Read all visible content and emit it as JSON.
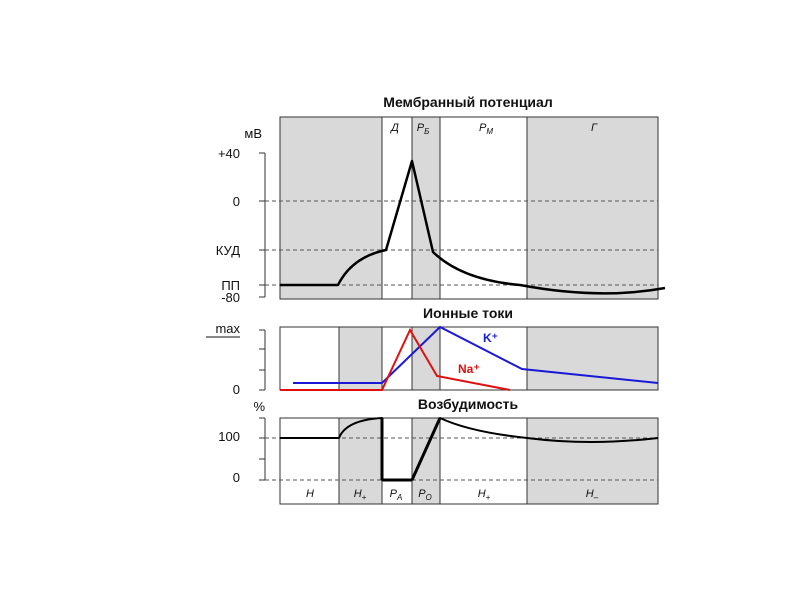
{
  "panels": {
    "membrane": {
      "title": "Мембранный потенциал",
      "unit": "мВ",
      "ticks": [
        "+40",
        "0",
        "КУД",
        "ПП",
        "-80"
      ],
      "phases": [
        {
          "label": "Д",
          "sub": ""
        },
        {
          "label": "Р",
          "sub": "Б"
        },
        {
          "label": "Р",
          "sub": "М"
        },
        {
          "label": "Г",
          "sub": ""
        }
      ]
    },
    "currents": {
      "title": "Ионные токи",
      "ticks": [
        "max",
        "0"
      ],
      "k_label": "K⁺",
      "na_label": "Na⁺"
    },
    "excitability": {
      "title": "Возбудимость",
      "unit": "%",
      "ticks": [
        "100",
        "0"
      ],
      "phases": [
        {
          "label": "Н",
          "sub": ""
        },
        {
          "label": "Н",
          "sub": "+"
        },
        {
          "label": "Р",
          "sub": "А"
        },
        {
          "label": "Р",
          "sub": "О"
        },
        {
          "label": "Н",
          "sub": "+"
        },
        {
          "label": "Н",
          "sub": "–"
        }
      ]
    }
  },
  "colors": {
    "shade": "#d9d9d9",
    "potassium": "#1a1ad6",
    "sodium": "#e01010",
    "trace": "#000000"
  }
}
